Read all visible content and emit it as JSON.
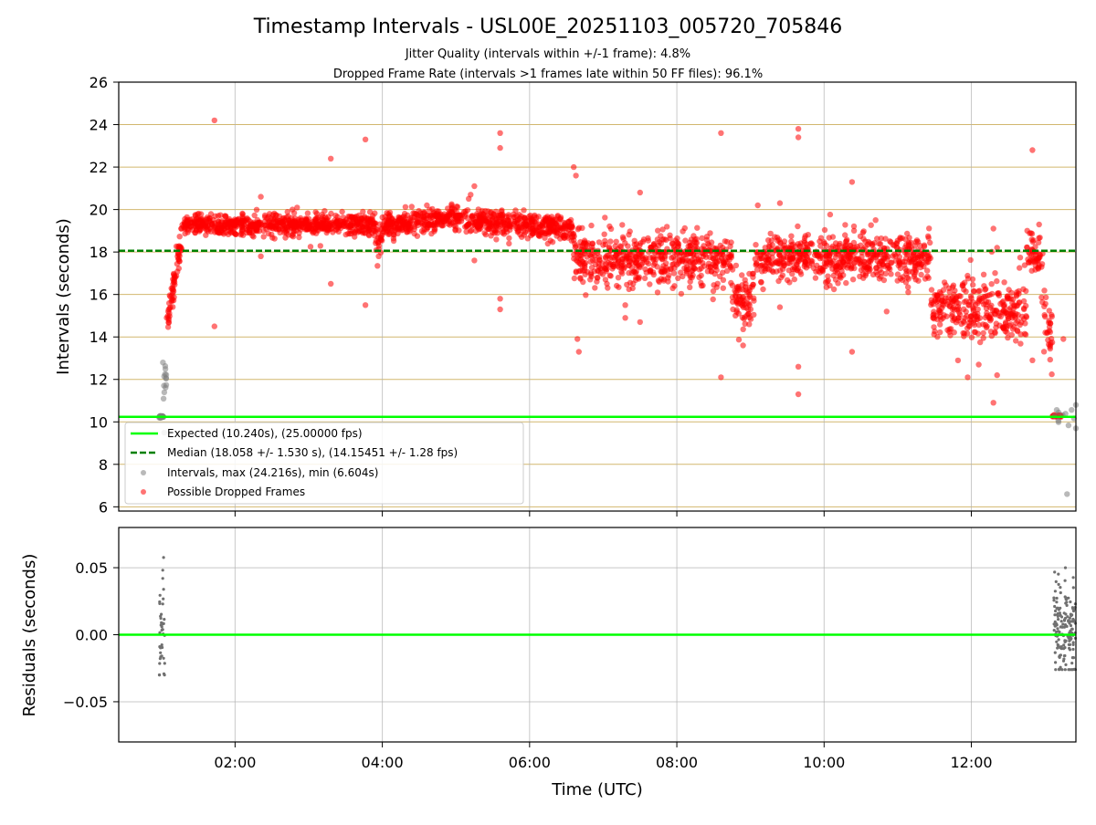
{
  "chart_data": {
    "type": "scatter",
    "title": "Timestamp Intervals - USL00E_20251103_005720_705846",
    "subtitles": [
      "Jitter Quality (intervals within +/-1 frame): 4.8%",
      "Dropped Frame Rate (intervals >1 frames late within 50 FF files): 96.1%"
    ],
    "xlabel": "Time (UTC)",
    "x_tick_labels": [
      "02:00",
      "04:00",
      "06:00",
      "08:00",
      "10:00",
      "12:00"
    ],
    "x_ticks_hours": [
      2,
      4,
      6,
      8,
      10,
      12
    ],
    "xlim_hours": [
      0.42,
      13.42
    ],
    "colors": {
      "expected": "#00ff00",
      "median": "#008000",
      "intervals": "#808080",
      "dropped": "#ff0000",
      "grid_y_top": "#d2b76e",
      "grid": "#b0b0b0",
      "residual_points": "#707070"
    },
    "top_panel": {
      "ylabel": "Intervals (seconds)",
      "ylim": [
        5.8,
        26
      ],
      "y_ticks": [
        6,
        8,
        10,
        12,
        14,
        16,
        18,
        20,
        22,
        24,
        26
      ],
      "expected_interval": 10.24,
      "median_interval": 18.058,
      "legend": [
        "Expected (10.240s), (25.00000 fps)",
        "Median (18.058 +/- 1.530 s), (14.15451 +/- 1.28 fps)",
        "Intervals, max (24.216s), min (6.604s)",
        "Possible Dropped Frames"
      ],
      "intervals_max": 24.216,
      "intervals_min": 6.604,
      "segments": [
        {
          "series": "intervals",
          "x_start": 0.97,
          "x_end": 1.03,
          "mean": 10.25,
          "sd": 0.02,
          "count": 30
        },
        {
          "series": "intervals",
          "x_start": 1.02,
          "x_end": 1.07,
          "mean": 11.8,
          "sd": 1.1,
          "count": 14
        },
        {
          "series": "dropped",
          "x_start": 1.07,
          "x_end": 1.3,
          "ramp_from": 14.5,
          "ramp_to": 19.2,
          "sd": 0.35,
          "count": 70
        },
        {
          "series": "dropped",
          "x_start": 1.3,
          "x_end": 3.9,
          "mean": 19.3,
          "sd": 0.25,
          "count": 700
        },
        {
          "series": "dropped",
          "x_start": 3.9,
          "x_end": 4.0,
          "mean": 18.7,
          "sd": 0.35,
          "count": 25
        },
        {
          "series": "dropped",
          "x_start": 4.0,
          "x_end": 5.1,
          "ramp_from": 19.2,
          "ramp_to": 19.7,
          "sd": 0.25,
          "count": 300
        },
        {
          "series": "dropped",
          "x_start": 5.1,
          "x_end": 6.6,
          "ramp_from": 19.5,
          "ramp_to": 19.1,
          "sd": 0.3,
          "count": 400
        },
        {
          "series": "dropped",
          "x_start": 6.6,
          "x_end": 8.75,
          "mean": 17.7,
          "sd": 0.6,
          "count": 550
        },
        {
          "series": "dropped",
          "x_start": 8.75,
          "x_end": 9.05,
          "mean": 15.9,
          "sd": 0.7,
          "count": 80
        },
        {
          "series": "dropped",
          "x_start": 9.05,
          "x_end": 11.45,
          "mean": 17.7,
          "sd": 0.55,
          "count": 600
        },
        {
          "series": "dropped",
          "x_start": 11.45,
          "x_end": 12.75,
          "mean": 15.3,
          "sd": 0.75,
          "count": 320
        },
        {
          "series": "dropped",
          "x_start": 12.75,
          "x_end": 12.95,
          "mean": 17.9,
          "sd": 0.5,
          "count": 50
        },
        {
          "series": "dropped",
          "x_start": 12.95,
          "x_end": 13.1,
          "ramp_from": 16.0,
          "ramp_to": 13.0,
          "sd": 1.0,
          "count": 35
        },
        {
          "series": "dropped",
          "x_start": 13.1,
          "x_end": 13.22,
          "mean": 10.27,
          "sd": 0.03,
          "count": 30
        },
        {
          "series": "intervals",
          "x_start": 13.11,
          "x_end": 13.42,
          "mean": 10.2,
          "sd": 0.25,
          "count": 10
        }
      ],
      "outliers": [
        {
          "series": "dropped",
          "x": 1.72,
          "y": 24.2
        },
        {
          "series": "dropped",
          "x": 1.72,
          "y": 14.5
        },
        {
          "series": "dropped",
          "x": 2.35,
          "y": 20.6
        },
        {
          "series": "dropped",
          "x": 2.35,
          "y": 17.8
        },
        {
          "series": "dropped",
          "x": 3.3,
          "y": 22.4
        },
        {
          "series": "dropped",
          "x": 3.3,
          "y": 16.5
        },
        {
          "series": "dropped",
          "x": 3.77,
          "y": 23.3
        },
        {
          "series": "dropped",
          "x": 3.77,
          "y": 15.5
        },
        {
          "series": "dropped",
          "x": 3.95,
          "y": 17.8
        },
        {
          "series": "dropped",
          "x": 5.2,
          "y": 20.7
        },
        {
          "series": "dropped",
          "x": 5.25,
          "y": 21.1
        },
        {
          "series": "dropped",
          "x": 5.25,
          "y": 17.6
        },
        {
          "series": "dropped",
          "x": 5.6,
          "y": 23.6
        },
        {
          "series": "dropped",
          "x": 5.6,
          "y": 22.9
        },
        {
          "series": "dropped",
          "x": 5.6,
          "y": 15.8
        },
        {
          "series": "dropped",
          "x": 5.6,
          "y": 15.3
        },
        {
          "series": "dropped",
          "x": 6.6,
          "y": 22.0
        },
        {
          "series": "dropped",
          "x": 6.63,
          "y": 21.6
        },
        {
          "series": "dropped",
          "x": 6.65,
          "y": 13.9
        },
        {
          "series": "dropped",
          "x": 6.67,
          "y": 13.3
        },
        {
          "series": "dropped",
          "x": 7.5,
          "y": 20.8
        },
        {
          "series": "dropped",
          "x": 7.3,
          "y": 15.5
        },
        {
          "series": "dropped",
          "x": 7.3,
          "y": 14.9
        },
        {
          "series": "dropped",
          "x": 7.5,
          "y": 14.7
        },
        {
          "series": "dropped",
          "x": 8.6,
          "y": 23.6
        },
        {
          "series": "dropped",
          "x": 8.6,
          "y": 12.1
        },
        {
          "series": "dropped",
          "x": 8.9,
          "y": 13.6
        },
        {
          "series": "dropped",
          "x": 9.1,
          "y": 20.2
        },
        {
          "series": "dropped",
          "x": 9.4,
          "y": 20.3
        },
        {
          "series": "dropped",
          "x": 9.4,
          "y": 15.4
        },
        {
          "series": "dropped",
          "x": 9.65,
          "y": 23.8
        },
        {
          "series": "dropped",
          "x": 9.65,
          "y": 23.4
        },
        {
          "series": "dropped",
          "x": 9.65,
          "y": 12.6
        },
        {
          "series": "dropped",
          "x": 9.65,
          "y": 11.3
        },
        {
          "series": "dropped",
          "x": 10.38,
          "y": 21.3
        },
        {
          "series": "dropped",
          "x": 10.38,
          "y": 13.3
        },
        {
          "series": "dropped",
          "x": 10.7,
          "y": 19.5
        },
        {
          "series": "dropped",
          "x": 10.85,
          "y": 15.2
        },
        {
          "series": "dropped",
          "x": 11.95,
          "y": 12.1
        },
        {
          "series": "dropped",
          "x": 12.1,
          "y": 12.7
        },
        {
          "series": "dropped",
          "x": 12.3,
          "y": 10.9
        },
        {
          "series": "dropped",
          "x": 12.35,
          "y": 12.2
        },
        {
          "series": "dropped",
          "x": 12.3,
          "y": 19.1
        },
        {
          "series": "dropped",
          "x": 12.35,
          "y": 18.2
        },
        {
          "series": "dropped",
          "x": 12.83,
          "y": 22.8
        },
        {
          "series": "dropped",
          "x": 12.83,
          "y": 12.9
        },
        {
          "series": "dropped",
          "x": 13.25,
          "y": 13.9
        },
        {
          "series": "intervals",
          "x": 13.3,
          "y": 6.6
        },
        {
          "series": "intervals",
          "x": 13.42,
          "y": 10.8
        },
        {
          "series": "intervals",
          "x": 13.42,
          "y": 9.7
        }
      ]
    },
    "bottom_panel": {
      "ylabel": "Residuals (seconds)",
      "ylim": [
        -0.08,
        0.08
      ],
      "y_ticks": [
        0.05,
        0.0,
        -0.05
      ],
      "y_tick_labels": [
        "0.05",
        "0.00",
        "−0.05"
      ],
      "zero_line": 0.0,
      "clusters": [
        {
          "x_start": 0.97,
          "x_end": 1.05,
          "min": -0.03,
          "max": 0.06,
          "count": 40
        },
        {
          "x_start": 13.12,
          "x_end": 13.42,
          "min": -0.026,
          "max": 0.05,
          "count": 160
        }
      ]
    }
  }
}
